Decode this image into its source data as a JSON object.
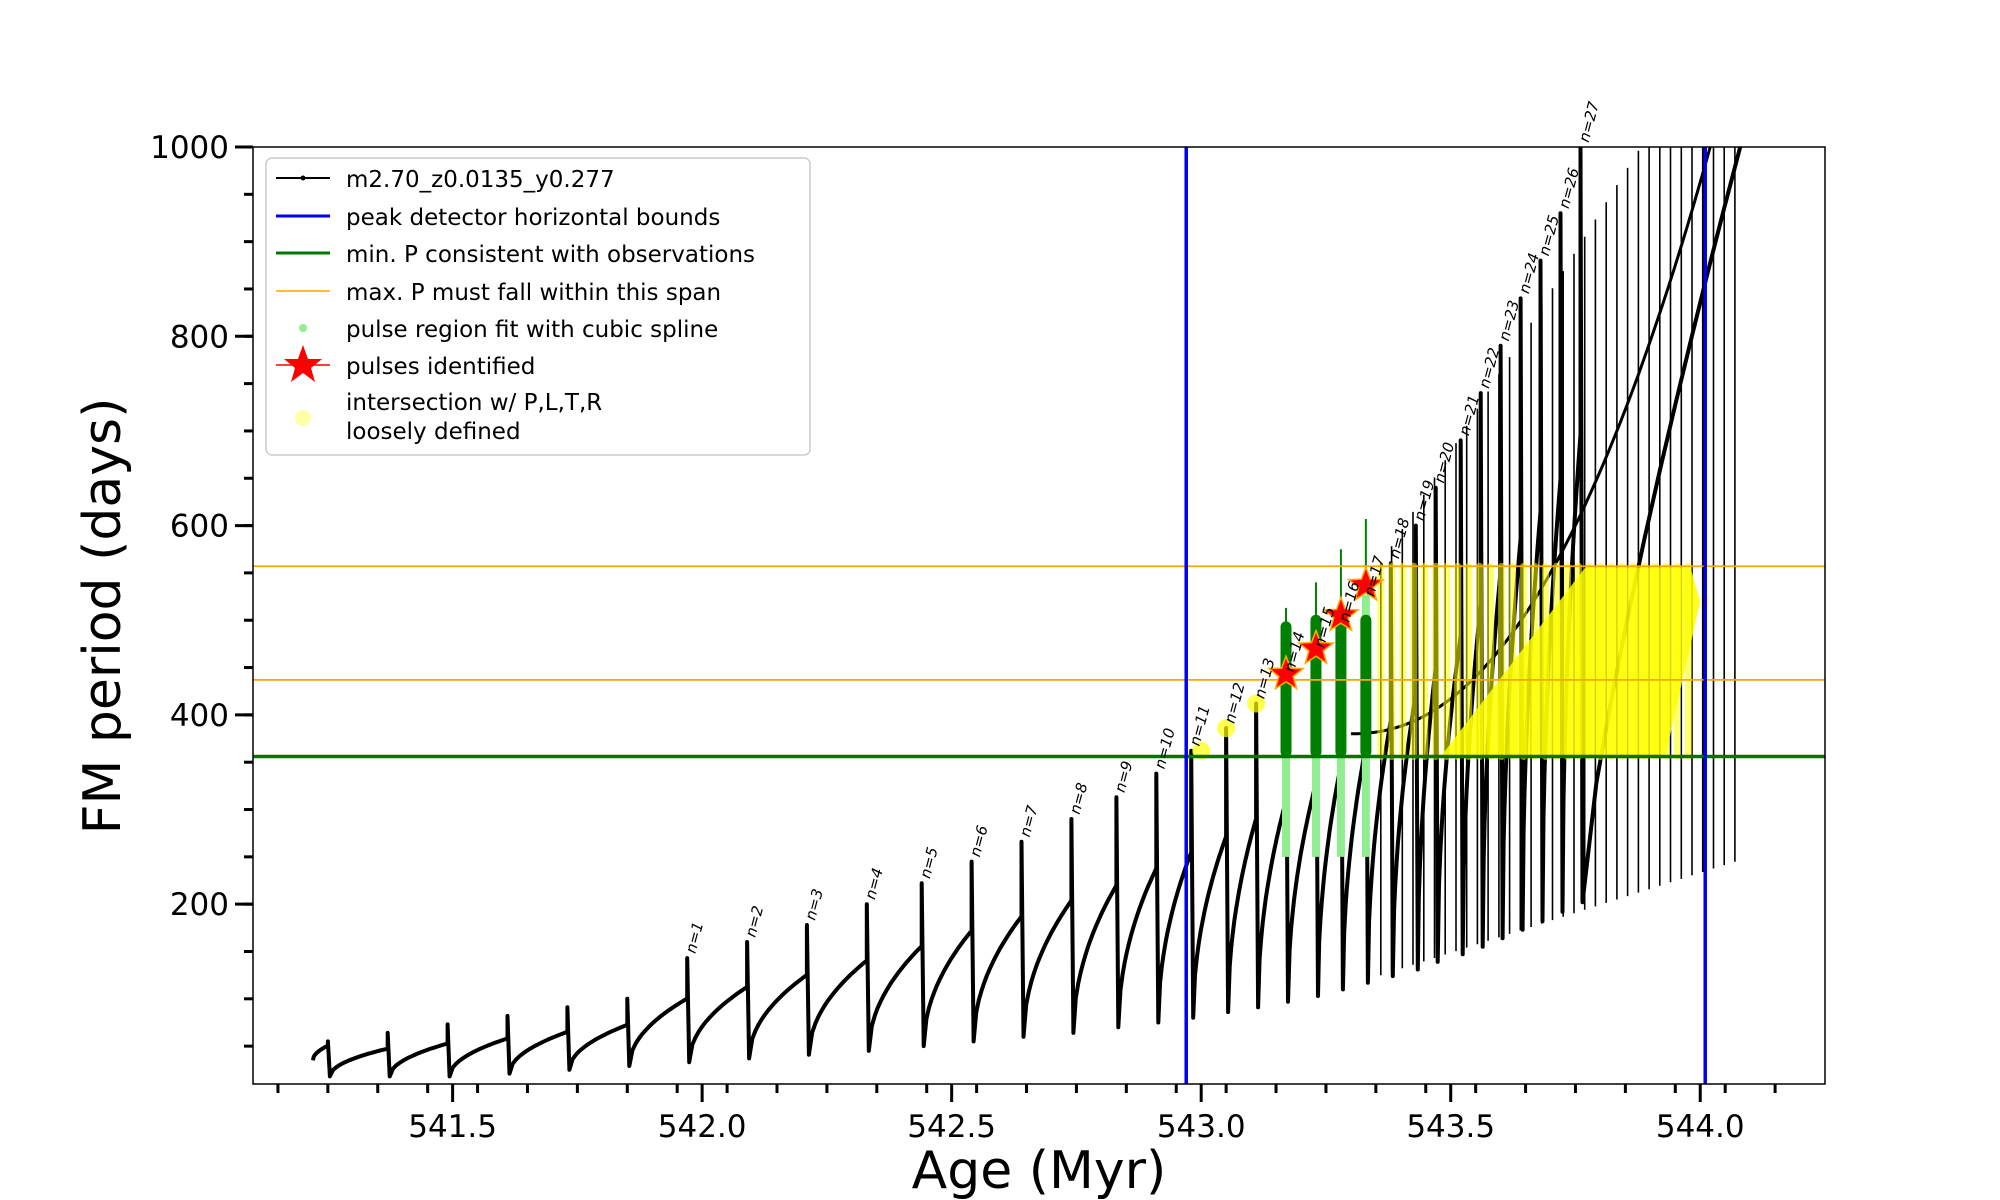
{
  "chart_data": {
    "type": "line",
    "xlabel": "Age (Myr)",
    "ylabel": "FM period (days)",
    "xlim": [
      541.1,
      544.25
    ],
    "ylim": [
      10,
      1000
    ],
    "x_ticks": [
      541.5,
      542.0,
      542.5,
      543.0,
      543.5,
      544.0
    ],
    "x_tick_labels": [
      "541.5",
      "542.0",
      "542.5",
      "543.0",
      "543.5",
      "544.0"
    ],
    "y_ticks": [
      200,
      400,
      600,
      800,
      1000
    ],
    "y_tick_labels": [
      "200",
      "400",
      "600",
      "800",
      "1000"
    ],
    "grid": false,
    "legend_position": "top-left",
    "legend": [
      {
        "label": "m2.70_z0.0135_y0.277",
        "style": "black-line-small-dots"
      },
      {
        "label": "peak detector horizontal bounds",
        "style": "blue-line"
      },
      {
        "label": "min. P consistent with observations",
        "style": "green-line"
      },
      {
        "label": "max. P must fall within this span",
        "style": "orange-line"
      },
      {
        "label": "pulse region fit with cubic spline",
        "style": "lightgreen-dot"
      },
      {
        "label": "pulses identified",
        "style": "red-star"
      },
      {
        "label": "intersection w/ P,L,T,R",
        "label2": "loosely defined",
        "style": "yellow-dot"
      }
    ],
    "vertical_lines": {
      "color": "#0000ee",
      "x": [
        542.97,
        544.01
      ]
    },
    "min_period_line": {
      "color": "#007700",
      "y": 356
    },
    "max_period_span": {
      "color": "#ffa500",
      "y": [
        437,
        557
      ]
    },
    "pulses": [
      {
        "n": 1,
        "age": 541.97,
        "period_min": 33,
        "period_peak": 143
      },
      {
        "n": 2,
        "age": 542.09,
        "period_min": 37,
        "period_peak": 160
      },
      {
        "n": 3,
        "age": 542.21,
        "period_min": 41,
        "period_peak": 178
      },
      {
        "n": 4,
        "age": 542.33,
        "period_min": 45,
        "period_peak": 200
      },
      {
        "n": 5,
        "age": 542.44,
        "period_min": 50,
        "period_peak": 222
      },
      {
        "n": 6,
        "age": 542.54,
        "period_min": 55,
        "period_peak": 245
      },
      {
        "n": 7,
        "age": 542.64,
        "period_min": 60,
        "period_peak": 266
      },
      {
        "n": 8,
        "age": 542.74,
        "period_min": 64,
        "period_peak": 290
      },
      {
        "n": 9,
        "age": 542.83,
        "period_min": 70,
        "period_peak": 313
      },
      {
        "n": 10,
        "age": 542.91,
        "period_min": 75,
        "period_peak": 338
      },
      {
        "n": 11,
        "age": 542.98,
        "period_min": 80,
        "period_peak": 362
      },
      {
        "n": 12,
        "age": 543.05,
        "period_min": 86,
        "period_peak": 386
      },
      {
        "n": 13,
        "age": 543.11,
        "period_min": 91,
        "period_peak": 412
      },
      {
        "n": 14,
        "age": 543.17,
        "period_min": 97,
        "period_peak": 440
      },
      {
        "n": 15,
        "age": 543.23,
        "period_min": 103,
        "period_peak": 466
      },
      {
        "n": 16,
        "age": 543.28,
        "period_min": 110,
        "period_peak": 493
      },
      {
        "n": 17,
        "age": 543.33,
        "period_min": 117,
        "period_peak": 520
      },
      {
        "n": 18,
        "age": 543.38,
        "period_min": 124,
        "period_peak": 560
      },
      {
        "n": 19,
        "age": 543.43,
        "period_min": 131,
        "period_peak": 600
      },
      {
        "n": 20,
        "age": 543.47,
        "period_min": 139,
        "period_peak": 640
      },
      {
        "n": 21,
        "age": 543.52,
        "period_min": 147,
        "period_peak": 690
      },
      {
        "n": 22,
        "age": 543.56,
        "period_min": 155,
        "period_peak": 740
      },
      {
        "n": 23,
        "age": 543.6,
        "period_min": 164,
        "period_peak": 790
      },
      {
        "n": 24,
        "age": 543.64,
        "period_min": 173,
        "period_peak": 840
      },
      {
        "n": 25,
        "age": 543.68,
        "period_min": 182,
        "period_peak": 880
      },
      {
        "n": 26,
        "age": 543.72,
        "period_min": 192,
        "period_peak": 930
      },
      {
        "n": 27,
        "age": 543.76,
        "period_min": 202,
        "period_peak": 1000
      }
    ],
    "pulses_identified": [
      {
        "n": 14,
        "age": 543.17,
        "period": 443
      },
      {
        "n": 15,
        "age": 543.23,
        "period": 470
      },
      {
        "n": 16,
        "age": 543.28,
        "period": 505
      },
      {
        "n": 17,
        "age": 543.33,
        "period": 537
      }
    ]
  },
  "colors": {
    "track": "#000000",
    "peak_bounds": "#0000ee",
    "min_period": "#007700",
    "max_span": "#ffa500",
    "spline": "#90ee90",
    "spline_dark": "#008000",
    "stars": "#ff0000",
    "intersection": "#ffff00"
  }
}
